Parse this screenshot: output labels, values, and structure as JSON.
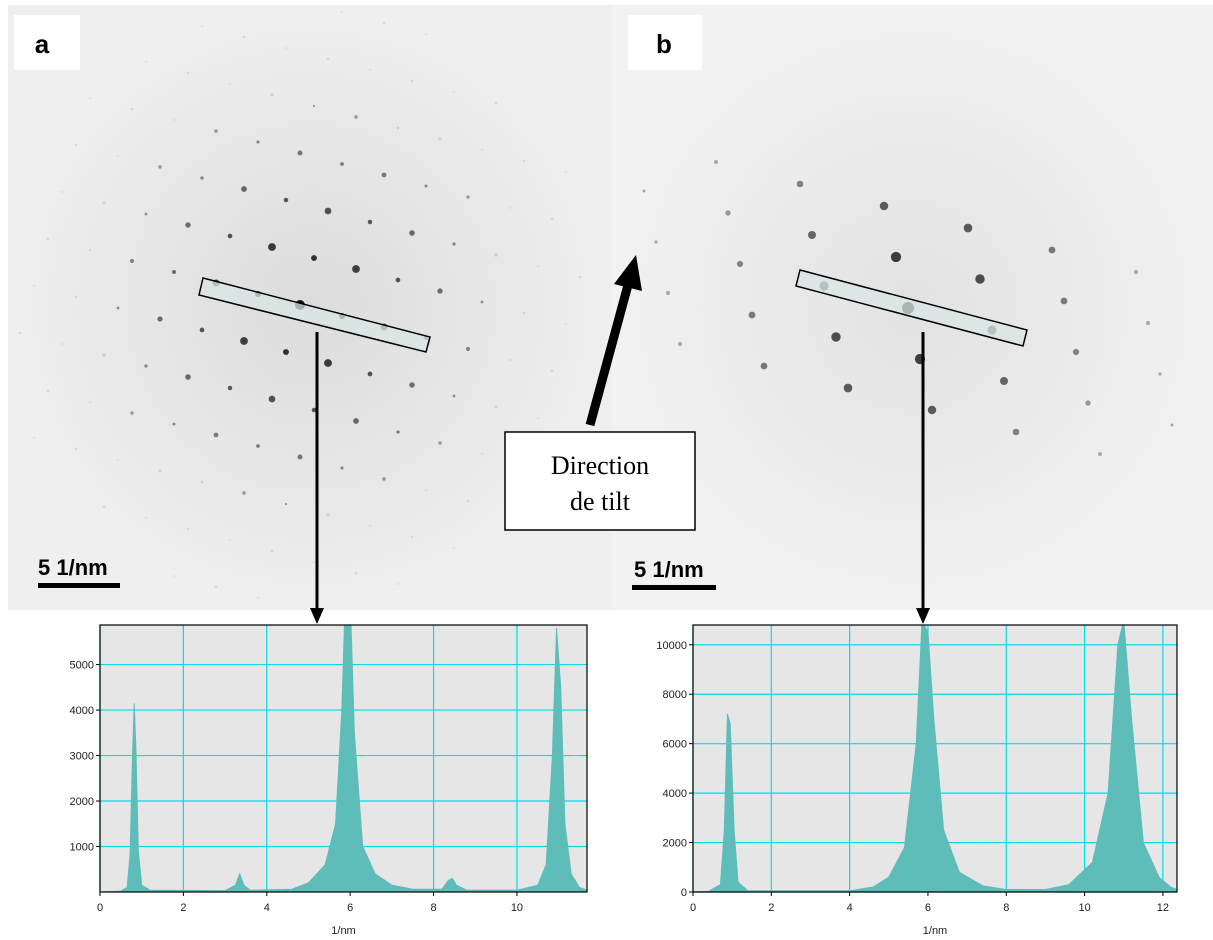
{
  "panels": [
    {
      "label": "a",
      "scale_bar": "5 1/nm"
    },
    {
      "label": "b",
      "scale_bar": "5 1/nm"
    }
  ],
  "annotation": [
    "Direction",
    "de tilt"
  ],
  "chart_data": [
    {
      "type": "area",
      "x_label": "1/nm",
      "xlim": [
        0,
        11.68
      ],
      "xticks": [
        0,
        2,
        4,
        6,
        8,
        10
      ],
      "ylim": [
        0,
        5870
      ],
      "yticks": [
        1000,
        2000,
        3000,
        4000,
        5000
      ],
      "grid": true,
      "grid_color": "#00dde8",
      "color": "#5fbdb9",
      "x": [
        0,
        0.5,
        0.65,
        0.72,
        0.78,
        0.82,
        0.86,
        0.92,
        1.0,
        1.2,
        3.0,
        3.25,
        3.35,
        3.45,
        3.6,
        4.6,
        5.0,
        5.4,
        5.65,
        5.8,
        5.9,
        6.0,
        6.1,
        6.3,
        6.6,
        7.0,
        7.5,
        8.2,
        8.35,
        8.45,
        8.55,
        8.8,
        10.0,
        10.5,
        10.7,
        10.85,
        10.95,
        11.05,
        11.15,
        11.3,
        11.5,
        11.68
      ],
      "values": [
        0,
        20,
        100,
        800,
        3000,
        4150,
        3200,
        900,
        150,
        40,
        30,
        150,
        400,
        150,
        40,
        60,
        200,
        600,
        1500,
        4000,
        7000,
        6500,
        3500,
        1000,
        400,
        150,
        60,
        60,
        250,
        300,
        150,
        40,
        40,
        150,
        600,
        3000,
        5800,
        4500,
        1500,
        400,
        100,
        40
      ]
    },
    {
      "type": "area",
      "x_label": "1/nm",
      "xlim": [
        0,
        12.36
      ],
      "xticks": [
        0,
        2,
        4,
        6,
        8,
        10,
        12
      ],
      "ylim": [
        0,
        10800
      ],
      "yticks": [
        0,
        2000,
        4000,
        6000,
        8000,
        10000
      ],
      "grid": true,
      "grid_color": "#00dde8",
      "color": "#5fbdb9",
      "x": [
        0,
        0.4,
        0.7,
        0.8,
        0.88,
        0.95,
        1.05,
        1.15,
        1.4,
        4.0,
        4.6,
        5.0,
        5.4,
        5.7,
        5.85,
        6.0,
        6.15,
        6.4,
        6.8,
        7.4,
        8.0,
        9.0,
        9.6,
        10.2,
        10.6,
        10.85,
        11.0,
        11.2,
        11.5,
        11.9,
        12.2,
        12.36
      ],
      "values": [
        0,
        30,
        300,
        2500,
        7200,
        6800,
        2500,
        400,
        50,
        50,
        200,
        600,
        1800,
        6000,
        11000,
        10500,
        7000,
        2500,
        800,
        250,
        100,
        100,
        300,
        1200,
        4000,
        10000,
        11000,
        7000,
        2000,
        600,
        200,
        100
      ]
    }
  ]
}
